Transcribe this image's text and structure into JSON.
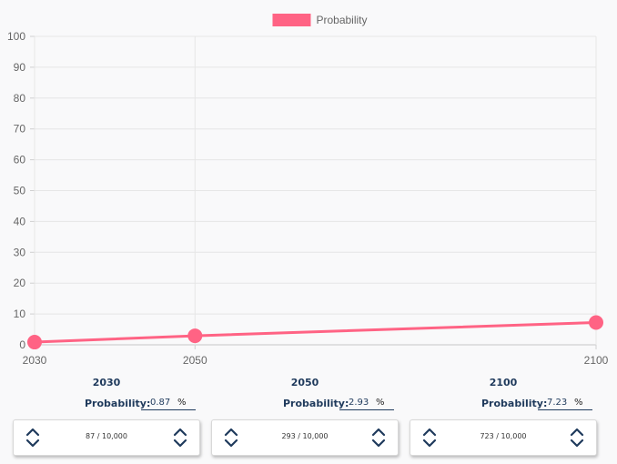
{
  "chart_data": {
    "type": "line",
    "x": [
      "2030",
      "2050",
      "2100"
    ],
    "x_values": [
      2030,
      2050,
      2100
    ],
    "series": [
      {
        "name": "Probability",
        "values": [
          0.87,
          2.93,
          7.23
        ],
        "color": "#ff6384"
      }
    ],
    "ylim": [
      0,
      100
    ],
    "y_ticks": [
      "0",
      "10",
      "20",
      "30",
      "40",
      "50",
      "60",
      "70",
      "80",
      "90",
      "100"
    ],
    "grid": true,
    "legend_position": "top"
  },
  "colors": {
    "series": "#ff6384",
    "text_dark": "#1f3a5c",
    "grid": "#e6e6e6"
  },
  "columns": [
    {
      "year": "2030",
      "prob_label": "Probability:",
      "prob_value": "0.87",
      "unit": "%",
      "count": "87 / 10,000"
    },
    {
      "year": "2050",
      "prob_label": "Probability:",
      "prob_value": "2.93",
      "unit": "%",
      "count": "293 / 10,000"
    },
    {
      "year": "2100",
      "prob_label": "Probability:",
      "prob_value": "7.23",
      "unit": "%",
      "count": "723 / 10,000"
    }
  ],
  "icons": {
    "increment": "chevron-up-icon",
    "decrement": "chevron-down-icon"
  }
}
